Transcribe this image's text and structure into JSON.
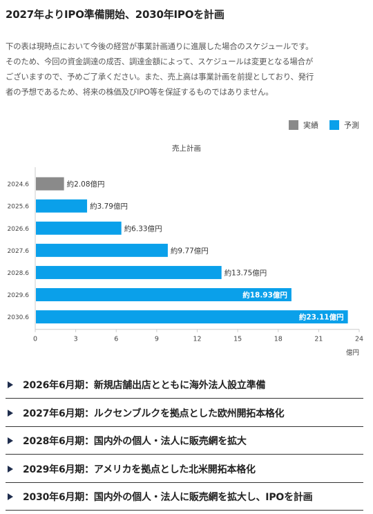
{
  "header": {
    "title": "2027年よりIPO準備開始、2030年IPOを計画"
  },
  "disclaimer": {
    "line1": "下の表は現時点において今後の経営が事業計画通りに進展した場合のスケジュールです。",
    "line2": "そのため、今回の資金調達の成否、調達金額によって、スケジュールは変更となる場合が",
    "line3": "ございますので、予めご了承ください。また、売上高は事業計画を前提としており、発行",
    "line4": "者の予想であるため、将来の株価及びIPO等を保証するものではありません。"
  },
  "legend": {
    "actual_label": "実績",
    "forecast_label": "予測"
  },
  "colors": {
    "actual": "#8a8a8a",
    "forecast": "#0aa0ea"
  },
  "chart_data": {
    "type": "bar",
    "orientation": "horizontal",
    "title": "売上計画",
    "xunit": "億円",
    "categories": [
      "2024.6",
      "2025.6",
      "2026.6",
      "2027.6",
      "2028.6",
      "2029.6",
      "2030.6"
    ],
    "values": [
      2.08,
      3.79,
      6.33,
      9.77,
      13.75,
      18.93,
      23.11
    ],
    "data_labels": [
      "約2.08億円",
      "約3.79億円",
      "約6.33億円",
      "約9.77億円",
      "約13.75億円",
      "約18.93億円",
      "約23.11億円"
    ],
    "bar_status": [
      "actual",
      "forecast",
      "forecast",
      "forecast",
      "forecast",
      "forecast",
      "forecast"
    ],
    "xlim": [
      0,
      24
    ],
    "xticks": [
      0,
      3,
      6,
      9,
      12,
      15,
      18,
      21,
      24
    ],
    "grid": false,
    "legend_position": "top-right"
  },
  "milestones": [
    {
      "text": "2026年6月期：新規店舗出店とともに海外法人設立準備"
    },
    {
      "text": "2027年6月期：ルクセンブルクを拠点とした欧州開拓本格化"
    },
    {
      "text": "2028年6月期：国内外の個人・法人に販売網を拡大"
    },
    {
      "text": "2029年6月期：アメリカを拠点とした北米開拓本格化"
    },
    {
      "text": "2030年6月期：国内外の個人・法人に販売網を拡大し、IPOを計画"
    }
  ]
}
